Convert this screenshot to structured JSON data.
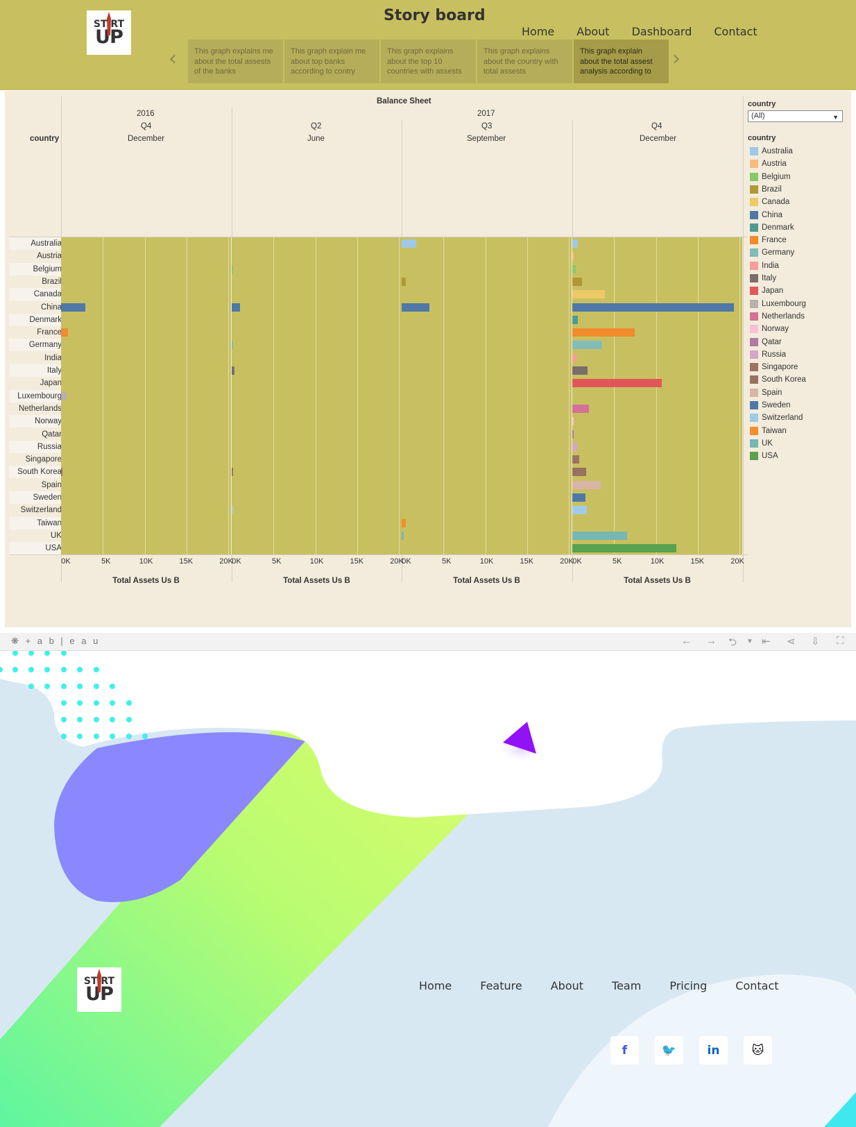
{
  "header": {
    "logo": {
      "line1": "ST RT",
      "line2": "UP"
    },
    "title": "Story board",
    "nav": [
      "Home",
      "About",
      "Dashboard",
      "Contact"
    ],
    "story_points": [
      "This graph explains me about the total assests of the banks",
      "This graph explain me about top banks according to contry",
      "This graph explains about the top 10 countries with assests",
      "This graph explains about the  country with total assests",
      "This graph explain about the total assest analysis according to"
    ],
    "active_story_point": 4
  },
  "viz": {
    "sheet_title": "Balance Sheet",
    "row_header": "country",
    "filter": {
      "title": "country",
      "value": "(All)"
    },
    "legend_title": "country"
  },
  "chart_data": {
    "type": "bar",
    "title": "Balance Sheet",
    "xlabel": "Total Assets Us B",
    "ylabel": "country",
    "xlim": [
      0,
      20000
    ],
    "tick_labels": [
      "0K",
      "5K",
      "10K",
      "15K",
      "20K"
    ],
    "panels": [
      {
        "year": "2016",
        "quarter": "Q4",
        "month": "December"
      },
      {
        "year": "2017",
        "quarter": "Q2",
        "month": "June"
      },
      {
        "year": "",
        "quarter": "Q3",
        "month": "September"
      },
      {
        "year": "",
        "quarter": "Q4",
        "month": "December"
      }
    ],
    "categories": [
      "Australia",
      "Austria",
      "Belgium",
      "Brazil",
      "Canada",
      "China",
      "Denmark",
      "France",
      "Germany",
      "India",
      "Italy",
      "Japan",
      "Luxembourg",
      "Netherlands",
      "Norway",
      "Qatar",
      "Russia",
      "Singapore",
      "South Korea",
      "Spain",
      "Sweden",
      "Switzerland",
      "Taiwan",
      "UK",
      "USA"
    ],
    "colors": [
      "#9ec9e7",
      "#f6bc7e",
      "#86c96a",
      "#b09836",
      "#ecca68",
      "#4f78a6",
      "#4f9a91",
      "#f08b2e",
      "#82bcb8",
      "#f59d98",
      "#7a6d6a",
      "#e15659",
      "#bab0ab",
      "#d37295",
      "#f9bfd3",
      "#b07aa1",
      "#d4a6c8",
      "#9a7460",
      "#987160",
      "#d7b5a6",
      "#4e79a7",
      "#a0cbe8",
      "#f28e2b",
      "#76b7b2",
      "#59a14f"
    ],
    "series": [
      {
        "values": [
          0,
          0,
          0,
          0,
          0,
          3000,
          0,
          850,
          0,
          0,
          0,
          0,
          650,
          0,
          0,
          0,
          0,
          0,
          150,
          0,
          0,
          0,
          0,
          0,
          0
        ]
      },
      {
        "values": [
          0,
          0,
          100,
          0,
          0,
          1000,
          0,
          0,
          130,
          0,
          380,
          0,
          0,
          0,
          0,
          0,
          0,
          0,
          200,
          0,
          0,
          150,
          0,
          0,
          0
        ]
      },
      {
        "values": [
          1800,
          0,
          0,
          500,
          0,
          3400,
          0,
          0,
          0,
          0,
          0,
          0,
          0,
          0,
          0,
          0,
          0,
          0,
          0,
          0,
          0,
          0,
          480,
          270,
          0
        ]
      },
      {
        "values": [
          700,
          100,
          400,
          1200,
          4000,
          20000,
          700,
          7700,
          3700,
          500,
          1900,
          11100,
          0,
          2100,
          200,
          200,
          600,
          900,
          1700,
          3500,
          1600,
          1800,
          0,
          6800,
          12900
        ]
      }
    ]
  },
  "toolbar": {
    "brand": "+ a b | e a u"
  },
  "footer": {
    "logo": {
      "line1": "ST RT",
      "line2": "UP"
    },
    "nav": [
      "Home",
      "Feature",
      "About",
      "Team",
      "Pricing",
      "Contact"
    ],
    "social": [
      {
        "icon": "facebook-icon",
        "glyph": "f",
        "color": "#3b5bdb"
      },
      {
        "icon": "twitter-icon",
        "glyph": "🐦",
        "color": "#1da1f2"
      },
      {
        "icon": "linkedin-icon",
        "glyph": "in",
        "color": "#0a66c2"
      },
      {
        "icon": "github-icon",
        "glyph": "🐱",
        "color": "#111111"
      }
    ]
  }
}
